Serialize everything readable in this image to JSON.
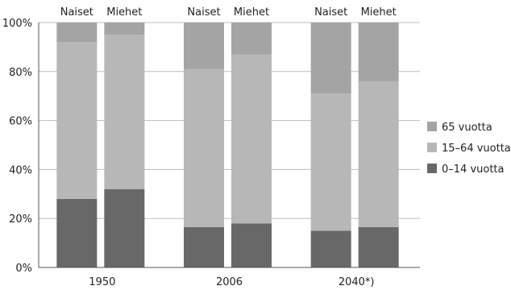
{
  "chart_data": {
    "type": "bar",
    "stacked": true,
    "percent": true,
    "title": "",
    "xlabel": "",
    "ylabel": "",
    "ylim": [
      0,
      100
    ],
    "y_ticks": [
      "0%",
      "20%",
      "40%",
      "60%",
      "80%",
      "100%"
    ],
    "grid": true,
    "legend_position": "right",
    "categories": [
      "1950",
      "2006",
      "2040*)"
    ],
    "bar_labels": [
      "Naiset",
      "Miehet"
    ],
    "series": [
      {
        "name": "0–14 vuotta",
        "color": "#686868",
        "values": [
          [
            28,
            32
          ],
          [
            16.5,
            18
          ],
          [
            15,
            16.5
          ]
        ]
      },
      {
        "name": "15–64 vuotta",
        "color": "#b7b7b7",
        "values": [
          [
            64,
            63
          ],
          [
            64.5,
            69
          ],
          [
            56,
            59.5
          ]
        ]
      },
      {
        "name": "65 vuotta",
        "color": "#a4a4a4",
        "values": [
          [
            8,
            5
          ],
          [
            19,
            13
          ],
          [
            29,
            24
          ]
        ]
      }
    ]
  }
}
